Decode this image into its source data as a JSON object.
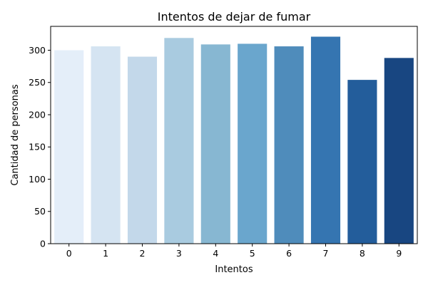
{
  "chart_data": {
    "type": "bar",
    "title": "Intentos de dejar de fumar",
    "xlabel": "Intentos",
    "ylabel": "Cantidad de personas",
    "categories": [
      "0",
      "1",
      "2",
      "3",
      "4",
      "5",
      "6",
      "7",
      "8",
      "9"
    ],
    "values": [
      300,
      306,
      290,
      319,
      309,
      310,
      306,
      321,
      254,
      288
    ],
    "ylim": [
      0,
      337
    ],
    "yticks": [
      0,
      50,
      100,
      150,
      200,
      250,
      300
    ],
    "grid": false,
    "legend": "none",
    "colors": [
      "#e4eef9",
      "#d5e4f2",
      "#c3d8ea",
      "#a9cbe0",
      "#87b7d2",
      "#6aa6cd",
      "#4f8cbb",
      "#3575b1",
      "#235d9b",
      "#184681"
    ]
  }
}
